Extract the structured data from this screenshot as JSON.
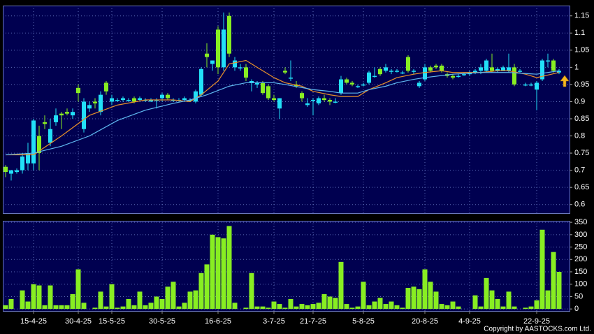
{
  "chart_data": [
    {
      "type": "candlestick",
      "up_color": "#22e0f8",
      "down_color": "#88ee22",
      "open": [
        0.71,
        0.69,
        0.695,
        0.7,
        0.72,
        0.72,
        0.8,
        0.84,
        0.78,
        0.84,
        0.865,
        0.87,
        0.86,
        0.94,
        0.82,
        0.88,
        0.9,
        0.87,
        0.955,
        0.9,
        0.905,
        0.905,
        0.905,
        0.91,
        0.905,
        0.905,
        0.9,
        0.905,
        0.91,
        0.92,
        0.905,
        0.905,
        0.905,
        0.905,
        0.9,
        0.92,
        1.04,
        1.01,
        1.11,
        1.0,
        1.15,
        1.0,
        1.0,
        1.0,
        0.955,
        0.95,
        0.955,
        0.945,
        0.91,
        0.88,
        0.99,
        0.97,
        0.95,
        0.925,
        0.89,
        0.905,
        0.895,
        0.91,
        0.905,
        0.9,
        0.925,
        0.965,
        0.955,
        0.945,
        0.95,
        0.955,
        0.975,
        0.995,
        0.99,
        0.99,
        0.99,
        0.985,
        1.03,
        0.99,
        0.945,
        0.965,
        1.0,
        1.005,
        1.005,
        0.98,
        0.975,
        0.975,
        0.98,
        0.98,
        0.985,
        0.99,
        0.99,
        1.0,
        0.99,
        0.99,
        0.99,
        1.0,
        0.99,
        0.95,
        0.95,
        0.935,
        0.965,
        1.02,
        1.02,
        0.985
      ],
      "high": [
        0.715,
        0.7,
        0.705,
        0.75,
        0.78,
        0.85,
        0.83,
        0.86,
        0.85,
        0.88,
        0.87,
        0.88,
        0.88,
        0.95,
        0.91,
        0.9,
        0.91,
        0.93,
        0.96,
        0.92,
        0.91,
        0.915,
        0.91,
        0.915,
        0.915,
        0.91,
        0.91,
        0.91,
        0.925,
        0.925,
        0.91,
        0.91,
        0.915,
        0.91,
        0.935,
        1.0,
        1.07,
        1.02,
        1.12,
        1.16,
        1.16,
        1.03,
        1.01,
        1.01,
        0.965,
        0.96,
        0.96,
        0.95,
        0.92,
        0.91,
        1.0,
        1.02,
        0.96,
        0.93,
        0.91,
        0.91,
        0.915,
        0.92,
        0.91,
        0.91,
        0.975,
        0.97,
        0.96,
        0.95,
        0.955,
        0.99,
        1.0,
        1.0,
        1.01,
        0.995,
        0.995,
        0.99,
        1.035,
        0.995,
        0.96,
        1.01,
        1.005,
        1.01,
        1.01,
        0.985,
        0.98,
        0.98,
        0.985,
        0.99,
        0.995,
        1.01,
        1.025,
        1.04,
        1.0,
        1.005,
        1.04,
        1.01,
        0.995,
        0.955,
        0.955,
        0.96,
        1.025,
        1.04,
        1.025,
        0.995
      ],
      "low": [
        0.68,
        0.67,
        0.69,
        0.69,
        0.7,
        0.7,
        0.7,
        0.82,
        0.77,
        0.83,
        0.82,
        0.86,
        0.85,
        0.9,
        0.81,
        0.87,
        0.88,
        0.86,
        0.92,
        0.89,
        0.9,
        0.9,
        0.9,
        0.895,
        0.9,
        0.9,
        0.9,
        0.88,
        0.9,
        0.905,
        0.9,
        0.9,
        0.9,
        0.9,
        0.895,
        0.915,
        1.0,
        0.99,
        0.98,
        0.99,
        1.03,
        0.99,
        0.99,
        0.96,
        0.93,
        0.94,
        0.92,
        0.905,
        0.9,
        0.85,
        0.98,
        0.96,
        0.94,
        0.9,
        0.885,
        0.86,
        0.89,
        0.9,
        0.89,
        0.895,
        0.92,
        0.95,
        0.945,
        0.94,
        0.945,
        0.95,
        0.97,
        0.975,
        0.985,
        0.98,
        0.985,
        0.98,
        0.985,
        0.98,
        0.94,
        0.96,
        0.985,
        0.995,
        0.985,
        0.97,
        0.965,
        0.97,
        0.975,
        0.975,
        0.98,
        0.98,
        0.985,
        0.985,
        0.985,
        0.99,
        0.985,
        0.945,
        0.985,
        0.945,
        0.945,
        0.875,
        0.96,
        1.0,
        0.985,
        0.98
      ],
      "close": [
        0.695,
        0.7,
        0.7,
        0.74,
        0.75,
        0.845,
        0.75,
        0.835,
        0.82,
        0.86,
        0.86,
        0.865,
        0.87,
        0.925,
        0.9,
        0.89,
        0.895,
        0.92,
        0.93,
        0.91,
        0.905,
        0.91,
        0.905,
        0.9,
        0.91,
        0.905,
        0.905,
        0.905,
        0.92,
        0.91,
        0.905,
        0.905,
        0.91,
        0.905,
        0.93,
        0.995,
        1.03,
        1.02,
        1.0,
        1.11,
        1.04,
        1.02,
        1.0,
        0.97,
        0.96,
        0.955,
        0.925,
        0.91,
        0.905,
        0.91,
        0.985,
        0.97,
        0.945,
        0.91,
        0.895,
        0.905,
        0.91,
        0.905,
        0.9,
        0.9,
        0.965,
        0.955,
        0.95,
        0.945,
        0.95,
        0.985,
        0.975,
        0.98,
        1.0,
        0.99,
        0.99,
        0.985,
        0.99,
        0.99,
        0.955,
        1.0,
        0.99,
        1.0,
        0.99,
        0.975,
        0.97,
        0.975,
        0.98,
        0.985,
        0.99,
        1.0,
        1.02,
        0.99,
        0.995,
        1.0,
        1.0,
        0.95,
        0.99,
        0.95,
        0.95,
        0.955,
        1.02,
        1.02,
        0.99,
        0.99
      ],
      "overlays": [
        {
          "color": "#e8902a",
          "x": [
            0,
            5,
            10,
            15,
            20,
            25,
            30,
            33,
            35,
            38,
            40,
            43,
            45,
            48,
            50,
            53,
            55,
            58,
            60,
            63,
            65,
            68,
            70,
            73,
            75,
            78,
            80,
            85,
            88,
            90,
            93,
            95,
            99
          ],
          "values": [
            0.745,
            0.745,
            0.8,
            0.86,
            0.89,
            0.905,
            0.905,
            0.9,
            0.92,
            0.96,
            1.01,
            1.02,
            1.0,
            0.97,
            0.955,
            0.945,
            0.93,
            0.92,
            0.915,
            0.915,
            0.935,
            0.955,
            0.97,
            0.98,
            0.985,
            0.99,
            0.985,
            0.985,
            0.99,
            0.99,
            0.98,
            0.97,
            0.985
          ]
        },
        {
          "color": "#5fb8f0",
          "x": [
            0,
            5,
            10,
            15,
            20,
            25,
            30,
            33,
            36,
            40,
            43,
            45,
            48,
            50,
            55,
            58,
            60,
            63,
            65,
            68,
            70,
            73,
            75,
            80,
            85,
            90,
            95,
            99
          ],
          "values": [
            0.745,
            0.75,
            0.77,
            0.8,
            0.845,
            0.875,
            0.895,
            0.905,
            0.92,
            0.945,
            0.955,
            0.955,
            0.955,
            0.95,
            0.935,
            0.93,
            0.925,
            0.925,
            0.935,
            0.945,
            0.955,
            0.965,
            0.97,
            0.98,
            0.985,
            0.985,
            0.98,
            0.99
          ]
        }
      ],
      "ylim": [
        0.575,
        1.18
      ],
      "yticks": [
        0.6,
        0.65,
        0.7,
        0.75,
        0.8,
        0.85,
        0.9,
        0.95,
        1,
        1.05,
        1.1,
        1.15
      ],
      "grid": true
    },
    {
      "type": "bar",
      "color": "#88ee22",
      "categories": [
        null,
        null,
        null,
        null,
        null,
        "15-4-25",
        null,
        null,
        null,
        null,
        null,
        null,
        null,
        "30-4-25",
        null,
        null,
        null,
        null,
        null,
        "15-5-25",
        null,
        null,
        null,
        null,
        null,
        null,
        null,
        null,
        "30-5-25",
        null,
        null,
        null,
        null,
        null,
        null,
        null,
        null,
        null,
        "16-6-25",
        null,
        null,
        null,
        null,
        null,
        null,
        null,
        null,
        null,
        "3-7-25",
        null,
        null,
        null,
        null,
        null,
        null,
        "21-7-25",
        null,
        null,
        null,
        null,
        null,
        null,
        null,
        null,
        "5-8-25",
        null,
        null,
        null,
        null,
        null,
        null,
        null,
        null,
        null,
        null,
        "20-8-25",
        null,
        null,
        null,
        null,
        null,
        null,
        null,
        "4-9-25",
        null,
        null,
        null,
        null,
        null,
        null,
        null,
        null,
        null,
        null,
        null,
        "22-9-25",
        null,
        null,
        null,
        null
      ],
      "values": [
        15,
        40,
        0,
        75,
        30,
        100,
        95,
        15,
        95,
        15,
        15,
        15,
        60,
        160,
        25,
        0,
        5,
        70,
        10,
        100,
        5,
        10,
        40,
        15,
        70,
        15,
        25,
        50,
        40,
        90,
        110,
        10,
        25,
        70,
        75,
        145,
        180,
        300,
        290,
        285,
        335,
        25,
        0,
        5,
        145,
        10,
        10,
        5,
        30,
        20,
        5,
        40,
        10,
        20,
        15,
        20,
        25,
        60,
        50,
        45,
        190,
        20,
        5,
        10,
        110,
        15,
        30,
        45,
        20,
        30,
        15,
        5,
        85,
        90,
        80,
        160,
        110,
        70,
        20,
        15,
        30,
        10,
        0,
        0,
        55,
        10,
        125,
        75,
        40,
        10,
        70,
        10,
        0,
        5,
        10,
        35,
        320,
        75,
        230,
        150
      ],
      "ylim": [
        -8,
        356
      ],
      "yticks": [
        0,
        50,
        100,
        150,
        200,
        250,
        300,
        350
      ],
      "grid": true
    }
  ],
  "footer": "Copyright by AASTOCKS.com Ltd."
}
